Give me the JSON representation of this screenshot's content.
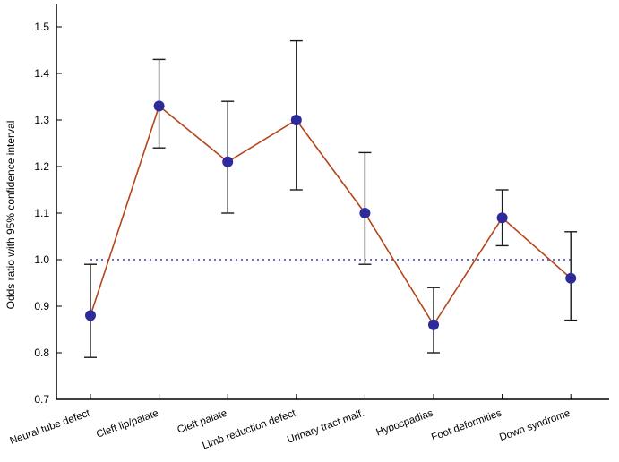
{
  "chart_data": {
    "type": "line",
    "title": "",
    "xlabel": "",
    "ylabel": "Odds ratio with 95% confidence interval",
    "ylim": [
      0.7,
      1.55
    ],
    "yticks": [
      "0.7",
      "0.8",
      "0.9",
      "1.0",
      "1.1",
      "1.2",
      "1.3",
      "1.4",
      "1.5"
    ],
    "reference_line": 1.0,
    "grid": false,
    "categories": [
      "Neural tube defect",
      "Cleft lip/palate",
      "Cleft palate",
      "Limb reduction defect",
      "Urinary tract malf.",
      "Hypospadias",
      "Foot deformities",
      "Down syndrome"
    ],
    "series": [
      {
        "name": "Odds ratio",
        "values": [
          0.88,
          1.33,
          1.21,
          1.3,
          1.1,
          0.86,
          1.09,
          0.96
        ],
        "ci_lower": [
          0.79,
          1.24,
          1.1,
          1.15,
          0.99,
          0.8,
          1.03,
          0.87
        ],
        "ci_upper": [
          0.99,
          1.43,
          1.34,
          1.47,
          1.23,
          0.94,
          1.15,
          1.06
        ]
      }
    ],
    "colors": {
      "line": "#b5451b",
      "marker": "#2e2a9c",
      "errorbar": "#1a1a1a",
      "reference": "#3b3bbf",
      "axis": "#000000"
    }
  }
}
